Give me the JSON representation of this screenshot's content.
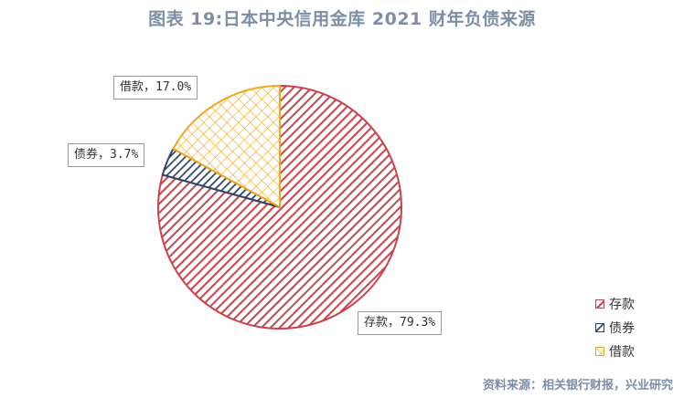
{
  "title": "图表 19:日本中央信用金库 2021 财年负债来源",
  "source": "资料来源：相关银行财报，兴业研究",
  "colors": {
    "deposit": "#c8434c",
    "bond": "#2e4566",
    "loan": "#f2a81d"
  },
  "chart_data": {
    "type": "pie",
    "title": "图表 19:日本中央信用金库 2021 财年负债来源",
    "slices": [
      {
        "name": "存款",
        "value": 79.3,
        "label": "存款，79.3%"
      },
      {
        "name": "债券",
        "value": 3.7,
        "label": "债券，3.7%"
      },
      {
        "name": "借款",
        "value": 17.0,
        "label": "借款，17.0%"
      }
    ],
    "legend": [
      "存款",
      "债券",
      "借款"
    ],
    "legend_position": "bottom-right",
    "start_angle": "12 o'clock",
    "direction": "clockwise"
  }
}
